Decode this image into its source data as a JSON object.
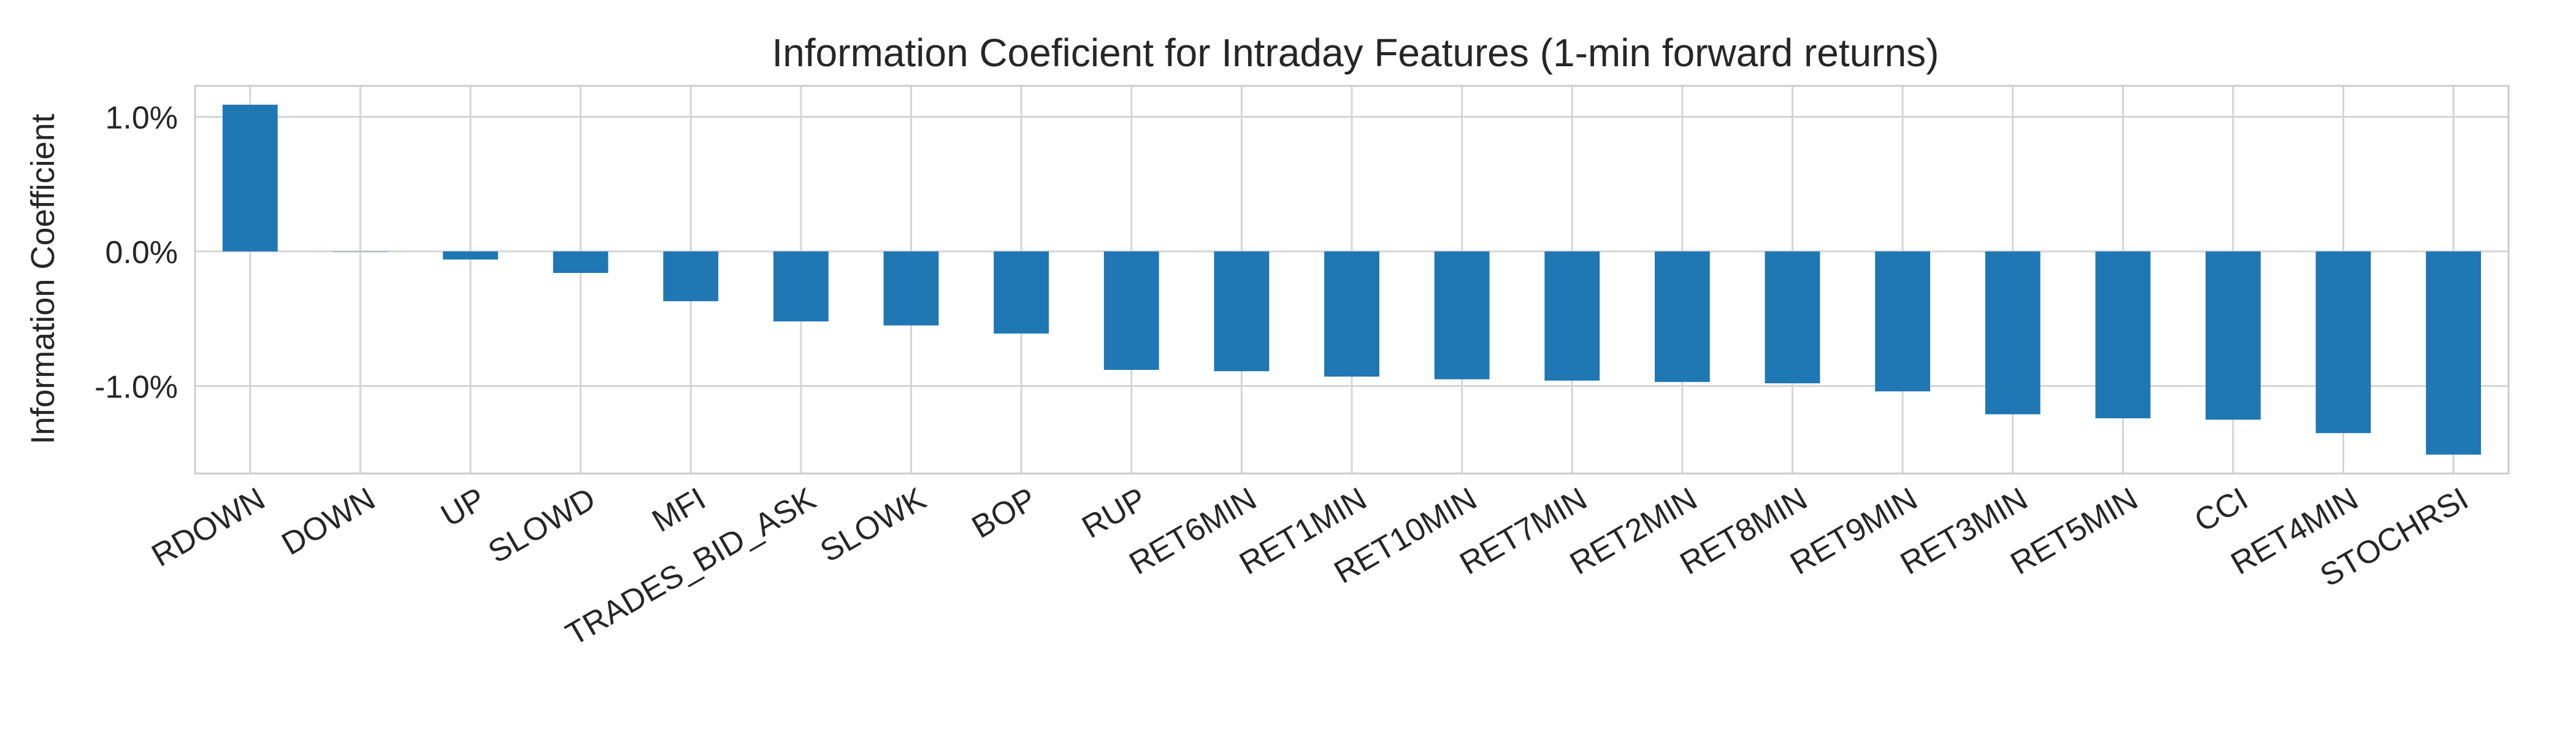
{
  "chart_data": {
    "type": "bar",
    "title": "Information Coeficient for Intraday Features (1-min forward returns)",
    "xlabel": "",
    "ylabel": "Information Coefficient",
    "categories": [
      "RDOWN",
      "DOWN",
      "UP",
      "SLOWD",
      "MFI",
      "TRADES_BID_ASK",
      "SLOWK",
      "BOP",
      "RUP",
      "RET6MIN",
      "RET1MIN",
      "RET10MIN",
      "RET7MIN",
      "RET2MIN",
      "RET8MIN",
      "RET9MIN",
      "RET3MIN",
      "RET5MIN",
      "CCI",
      "RET4MIN",
      "STOCHRSI"
    ],
    "values": [
      0.0109,
      0.0,
      -0.0006,
      -0.0016,
      -0.0037,
      -0.0052,
      -0.0055,
      -0.0061,
      -0.0088,
      -0.0089,
      -0.0093,
      -0.0095,
      -0.0096,
      -0.0097,
      -0.0098,
      -0.0104,
      -0.0121,
      -0.0124,
      -0.0125,
      -0.0135,
      -0.0151
    ],
    "ylim": [
      -0.0165,
      0.0123
    ],
    "yticks": [
      -0.01,
      0.0,
      0.01
    ],
    "ytick_labels": [
      "-1.0%",
      "0.0%",
      "1.0%"
    ],
    "grid": true,
    "legend": "none",
    "colors": {
      "bar": "#1f77b4",
      "grid": "#d5d5d5",
      "frame": "#cccccc",
      "text": "#262626"
    }
  }
}
